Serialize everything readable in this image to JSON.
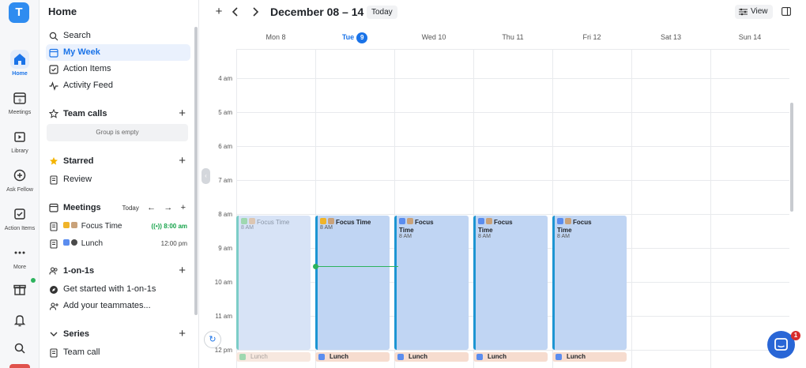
{
  "workspace": {
    "initial": "T"
  },
  "rail": {
    "items": [
      {
        "label": "Home",
        "icon": "home-icon"
      },
      {
        "label": "Meetings",
        "icon": "calendar-icon",
        "badge": "9"
      },
      {
        "label": "Library",
        "icon": "library-icon"
      },
      {
        "label": "Ask Fellow",
        "icon": "ask-icon"
      },
      {
        "label": "Action Items",
        "icon": "checkbox-icon"
      },
      {
        "label": "More",
        "icon": "more-icon"
      }
    ]
  },
  "sidebar": {
    "title": "Home",
    "nav": [
      {
        "label": "Search",
        "icon": "search-icon"
      },
      {
        "label": "My Week",
        "icon": "calendar-icon"
      },
      {
        "label": "Action Items",
        "icon": "checkbox-icon"
      },
      {
        "label": "Activity Feed",
        "icon": "activity-icon"
      }
    ],
    "team_calls": {
      "title": "Team calls",
      "empty": "Group is empty"
    },
    "starred": {
      "title": "Starred",
      "items": [
        {
          "label": "Review"
        }
      ]
    },
    "meetings": {
      "title": "Meetings",
      "today_label": "Today",
      "items": [
        {
          "label": "Focus Time",
          "time": "8:00 am",
          "live": true
        },
        {
          "label": "Lunch",
          "time": "12:00 pm",
          "live": false
        }
      ]
    },
    "one_on_ones": {
      "title": "1-on-1s",
      "items": [
        {
          "label": "Get started with 1-on-1s"
        },
        {
          "label": "Add your teammates..."
        }
      ]
    },
    "series": {
      "title": "Series",
      "items": [
        {
          "label": "Team call"
        }
      ]
    }
  },
  "calendar": {
    "range_title": "December 08 – 14",
    "today_button": "Today",
    "view_button": "View",
    "days": [
      {
        "label": "Mon 8"
      },
      {
        "label": "Tue",
        "date": "9",
        "today": true
      },
      {
        "label": "Wed 10"
      },
      {
        "label": "Thu 11"
      },
      {
        "label": "Fri 12"
      },
      {
        "label": "Sat 13"
      },
      {
        "label": "Sun 14"
      }
    ],
    "hours": [
      "4 am",
      "5 am",
      "6 am",
      "7 am",
      "8 am",
      "9 am",
      "10 am",
      "11 am",
      "12 pm"
    ],
    "events": [
      {
        "title": "Focus Time",
        "time": "8 AM",
        "past": true
      },
      {
        "title": "Focus Time",
        "time": "8 AM",
        "past": false
      },
      {
        "title": "Focus Time",
        "time": "8 AM",
        "past": false
      },
      {
        "title": "Focus Time",
        "time": "8 AM",
        "past": false
      },
      {
        "title": "Focus Time",
        "time": "8 AM",
        "past": false
      }
    ],
    "lunch": [
      {
        "title": "Lunch",
        "past": true
      },
      {
        "title": "Lunch",
        "past": false
      },
      {
        "title": "Lunch",
        "past": false
      },
      {
        "title": "Lunch",
        "past": false
      },
      {
        "title": "Lunch",
        "past": false
      }
    ]
  },
  "chat": {
    "badge": "1"
  },
  "colors": {
    "accent": "#1a73e8",
    "event": "#c0d5f3",
    "now": "#2db35d",
    "lunch": "#f6dccf"
  }
}
